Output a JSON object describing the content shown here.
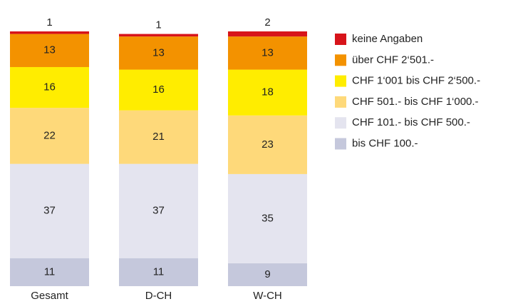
{
  "chart_data": {
    "type": "stacked_bar",
    "categories": [
      "Gesamt",
      "D-CH",
      "W-CH"
    ],
    "series": [
      {
        "name": "bis CHF 100.-",
        "color": "#c5c8dc",
        "values": [
          11,
          11,
          9
        ]
      },
      {
        "name": "CHF 101.- bis CHF 500.-",
        "color": "#e4e4ef",
        "values": [
          37,
          37,
          35
        ]
      },
      {
        "name": "CHF 501.- bis CHF 1‘000.-",
        "color": "#fed97a",
        "values": [
          22,
          21,
          23
        ]
      },
      {
        "name": "CHF 1‘001 bis CHF 2‘500.-",
        "color": "#ffed00",
        "values": [
          16,
          16,
          18
        ]
      },
      {
        "name": "über CHF 2‘501.-",
        "color": "#f39200",
        "values": [
          13,
          13,
          13
        ]
      },
      {
        "name": "keine Angaben",
        "color": "#d7141a",
        "values": [
          1,
          1,
          2
        ]
      }
    ],
    "legend": "right"
  }
}
